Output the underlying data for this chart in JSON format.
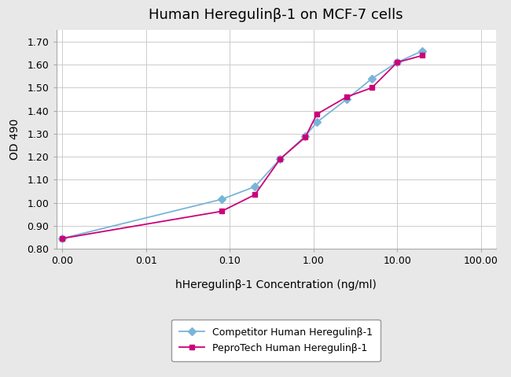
{
  "title": "Human Heregulinβ-1 on MCF-7 cells",
  "xlabel": "hHeregulinβ-1 Concentration (ng/ml)",
  "ylabel": "OD 490",
  "ylim": [
    0.8,
    1.75
  ],
  "yticks": [
    0.8,
    0.9,
    1.0,
    1.1,
    1.2,
    1.3,
    1.4,
    1.5,
    1.6,
    1.7
  ],
  "xtick_labels": [
    "0.00",
    "0.01",
    "0.10",
    "1.00",
    "10.00",
    "100.00"
  ],
  "xtick_positions": [
    0.001,
    0.01,
    0.1,
    1.0,
    10.0,
    100.0
  ],
  "competitor": {
    "x": [
      0.001,
      0.08,
      0.2,
      0.4,
      0.8,
      1.1,
      2.5,
      5.0,
      10.0,
      20.0
    ],
    "y": [
      0.845,
      1.015,
      1.07,
      1.19,
      1.29,
      1.35,
      1.45,
      1.54,
      1.61,
      1.66
    ],
    "color": "#7ab4d8",
    "marker": "D",
    "markersize": 5,
    "linewidth": 1.3,
    "label": "Competitor Human Heregulinβ-1"
  },
  "peprotech": {
    "x": [
      0.001,
      0.08,
      0.2,
      0.4,
      0.8,
      1.1,
      2.5,
      5.0,
      10.0,
      20.0
    ],
    "y": [
      0.845,
      0.963,
      1.035,
      1.19,
      1.285,
      1.385,
      1.46,
      1.5,
      1.61,
      1.64
    ],
    "color": "#cc007a",
    "marker": "s",
    "markersize": 5,
    "linewidth": 1.3,
    "label": "PeproTech Human Heregulinβ-1"
  },
  "fig_bg": "#e8e8e8",
  "plot_bg": "#ffffff",
  "grid_color": "#cccccc",
  "spine_color": "#aaaaaa",
  "title_fontsize": 13,
  "axis_label_fontsize": 10,
  "tick_fontsize": 9,
  "legend_fontsize": 9
}
